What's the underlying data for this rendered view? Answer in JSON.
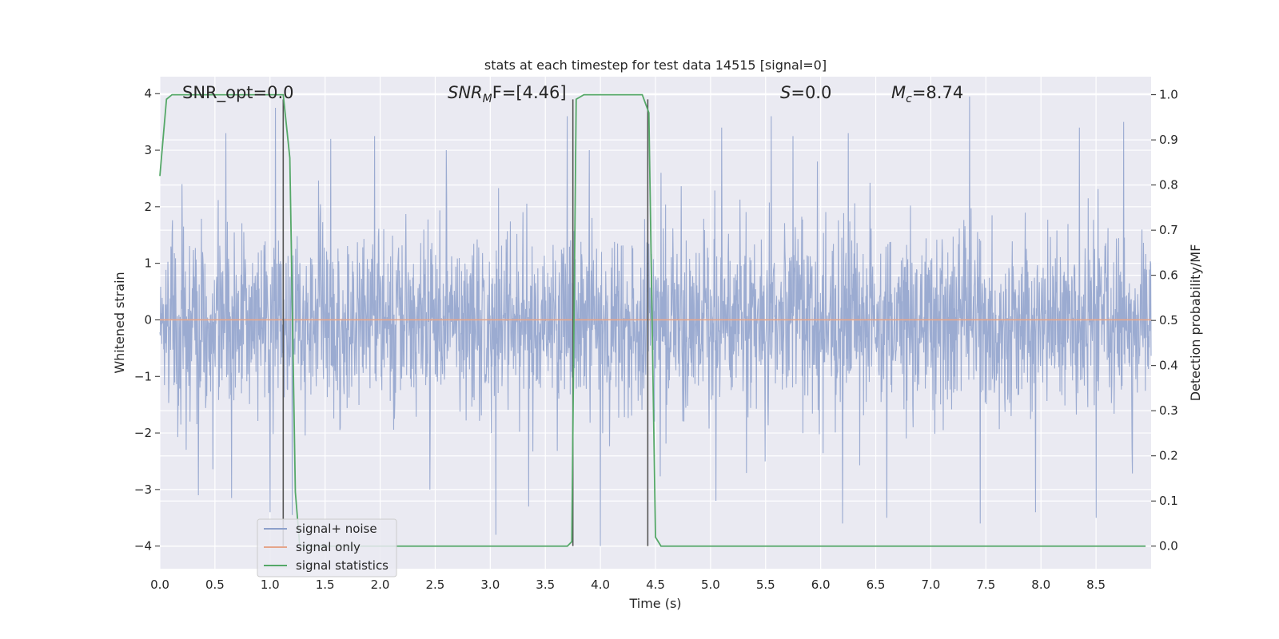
{
  "chart_data": {
    "type": "line",
    "title": "stats at each timestep for test data 14515 [signal=0]",
    "xlabel": "Time (s)",
    "ylabel": "Whitened strain",
    "ylabel_right": "Detection probability/MF",
    "xlim": [
      0,
      9
    ],
    "ylim": [
      -4.4,
      4.3
    ],
    "ylim_right": [
      -0.05,
      1.04
    ],
    "x_ticks": [
      "0.0",
      "0.5",
      "1.0",
      "1.5",
      "2.0",
      "2.5",
      "3.0",
      "3.5",
      "4.0",
      "4.5",
      "5.0",
      "5.5",
      "6.0",
      "6.5",
      "7.0",
      "7.5",
      "8.0",
      "8.5"
    ],
    "y_ticks": [
      "4",
      "3",
      "2",
      "1",
      "0",
      "−1",
      "−2",
      "−3",
      "−4"
    ],
    "y_ticks_right": [
      "1.0",
      "0.9",
      "0.8",
      "0.7",
      "0.6",
      "0.5",
      "0.4",
      "0.3",
      "0.2",
      "0.1",
      "0.0"
    ],
    "grid": true,
    "legend_position": "lower-left",
    "annotations": {
      "snr_opt": "SNR_opt=0.0",
      "snr_mf_main": "SNR",
      "snr_mf_sub": "M",
      "snr_mf_rest": "F=[4.46]",
      "s_main": "S",
      "s_rest": "=0.0",
      "mc_main": "M",
      "mc_sub": "c",
      "mc_rest": "=8.74"
    },
    "series": [
      {
        "name": "signal+ noise",
        "color": "#8da0cb",
        "noise_std": 0.8,
        "spike_peaks": [
          [
            0.2,
            2.4
          ],
          [
            0.6,
            3.3
          ],
          [
            1.05,
            3.75
          ],
          [
            1.55,
            3.2
          ],
          [
            1.95,
            3.25
          ],
          [
            2.6,
            3.0
          ],
          [
            3.7,
            3.6
          ],
          [
            3.9,
            3.0
          ],
          [
            4.55,
            2.6
          ],
          [
            5.1,
            3.4
          ],
          [
            5.55,
            3.6
          ],
          [
            5.75,
            3.25
          ],
          [
            6.25,
            3.3
          ],
          [
            7.35,
            3.95
          ],
          [
            8.35,
            3.4
          ],
          [
            8.75,
            3.5
          ],
          [
            0.35,
            -3.1
          ],
          [
            0.65,
            -3.15
          ],
          [
            1.0,
            -3.4
          ],
          [
            1.2,
            -3.45
          ],
          [
            2.45,
            -3.0
          ],
          [
            3.05,
            -3.8
          ],
          [
            3.35,
            -3.3
          ],
          [
            4.0,
            -4.0
          ],
          [
            5.05,
            -3.2
          ],
          [
            6.2,
            -3.6
          ],
          [
            6.6,
            -3.5
          ],
          [
            7.45,
            -3.6
          ],
          [
            7.95,
            -3.4
          ],
          [
            8.5,
            -3.5
          ]
        ]
      },
      {
        "name": "signal only",
        "color": "#e5a58a",
        "x": [
          0,
          9
        ],
        "y": [
          0,
          0
        ]
      },
      {
        "name": "signal statistics",
        "color": "#55a868",
        "axis": "right",
        "x": [
          0.0,
          0.06,
          0.11,
          0.5,
          1.0,
          1.12,
          1.18,
          1.23,
          1.27,
          1.5,
          2.5,
          3.5,
          3.7,
          3.74,
          3.78,
          3.85,
          4.0,
          4.38,
          4.44,
          4.5,
          4.55,
          5.0,
          6.0,
          7.0,
          8.0,
          8.95
        ],
        "y": [
          0.82,
          0.99,
          1.0,
          1.0,
          1.0,
          1.0,
          0.86,
          0.12,
          0.0,
          0.0,
          0.0,
          0.0,
          0.0,
          0.01,
          0.99,
          1.0,
          1.0,
          1.0,
          0.96,
          0.02,
          0.0,
          0.0,
          0.0,
          0.0,
          0.0,
          0.0
        ]
      }
    ],
    "markers": [
      {
        "color": "#555555",
        "x": 1.12,
        "y_from": -4.0,
        "y_to": 3.9
      },
      {
        "color": "#555555",
        "x": 3.75,
        "y_from": -4.0,
        "y_to": 3.9
      },
      {
        "color": "#555555",
        "x": 4.43,
        "y_from": -4.0,
        "y_to": 3.9
      }
    ]
  }
}
